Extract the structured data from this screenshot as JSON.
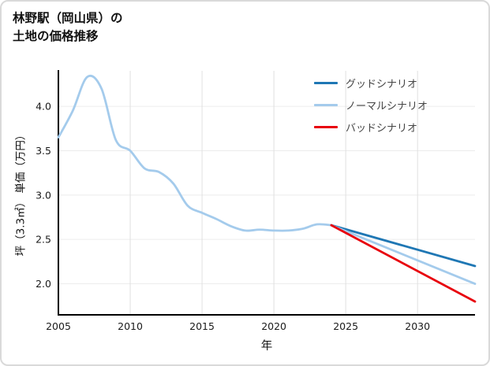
{
  "title": {
    "line1": "林野駅（岡山県）の",
    "line2": "土地の価格推移"
  },
  "chart_data": {
    "type": "line",
    "title": "林野駅（岡山県）の土地の価格推移",
    "xlabel": "年",
    "ylabel": "坪（3.3㎡） 単価（万円）",
    "xlim": [
      2005,
      2034
    ],
    "ylim": [
      1.65,
      4.4
    ],
    "x_ticks": [
      2005,
      2010,
      2015,
      2020,
      2025,
      2030
    ],
    "y_ticks": [
      2.0,
      2.5,
      3.0,
      3.5,
      4.0
    ],
    "grid": true,
    "legend_position": "top-right",
    "history": {
      "color": "#a4cbec",
      "x": [
        2005,
        2006,
        2007,
        2008,
        2009,
        2010,
        2011,
        2012,
        2013,
        2014,
        2015,
        2016,
        2017,
        2018,
        2019,
        2020,
        2021,
        2022,
        2023,
        2024
      ],
      "y": [
        3.65,
        3.95,
        4.33,
        4.2,
        3.62,
        3.5,
        3.3,
        3.26,
        3.13,
        2.88,
        2.8,
        2.73,
        2.65,
        2.6,
        2.61,
        2.6,
        2.6,
        2.62,
        2.67,
        2.66
      ]
    },
    "series": [
      {
        "name": "グッドシナリオ",
        "color": "#1f77b4",
        "x": [
          2024,
          2034
        ],
        "y": [
          2.66,
          2.2
        ]
      },
      {
        "name": "ノーマルシナリオ",
        "color": "#a4cbec",
        "x": [
          2024,
          2034
        ],
        "y": [
          2.66,
          2.0
        ]
      },
      {
        "name": "バッドシナリオ",
        "color": "#e8000b",
        "x": [
          2024,
          2034
        ],
        "y": [
          2.66,
          1.8
        ]
      }
    ]
  }
}
